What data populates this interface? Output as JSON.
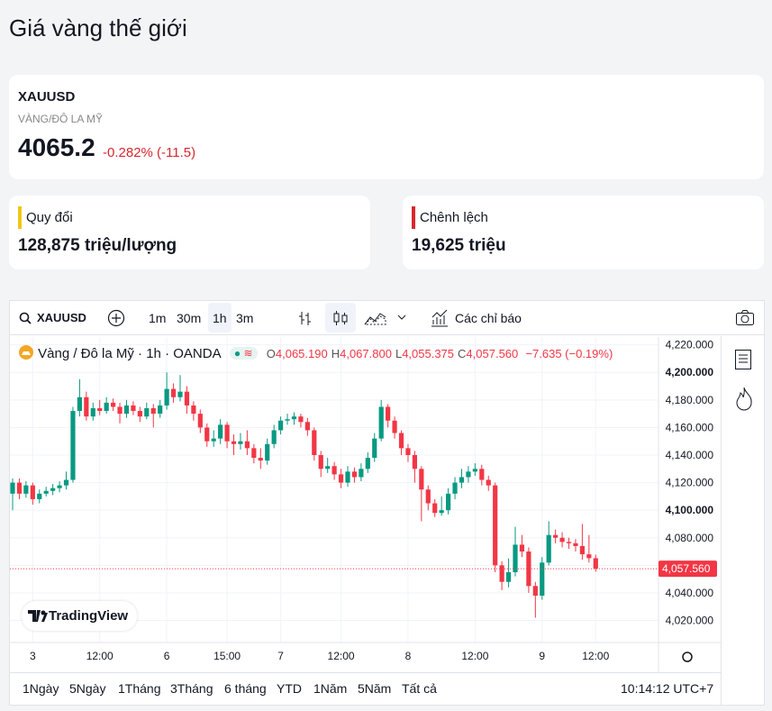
{
  "header": {
    "title": "Giá vàng thế giới"
  },
  "quote": {
    "symbol": "XAUUSD",
    "name": "VÀNG/ĐÔ LA MỸ",
    "price": "4065.2",
    "change": "-0.282% (-11.5)"
  },
  "cards": [
    {
      "label": "Quy đổi",
      "value": "128,875 triệu/lượng"
    },
    {
      "label": "Chênh lệch",
      "value": "19,625 triệu"
    }
  ],
  "widget": {
    "toolbar": {
      "symbol": "XAUUSD",
      "intervals": [
        "1m",
        "30m",
        "1h",
        "3m"
      ],
      "indicators": "Các chỉ báo"
    },
    "legend": [
      {
        "key": "O",
        "value": "4,065.190"
      },
      {
        "key": "H",
        "value": "4,067.800"
      },
      {
        "key": "L",
        "value": "4,055.375"
      },
      {
        "key": "C",
        "value": "4,057.560"
      }
    ],
    "legend_change": "−7.635 (−0.19%)",
    "brand": "TradingView",
    "ranges": [
      "1Ngày",
      "5Ngày",
      "1Tháng",
      "3Tháng",
      "6 tháng",
      "YTD",
      "1Năm",
      "5Năm",
      "Tất cả"
    ],
    "clock": "10:14:12 UTC+7"
  },
  "chart_data": {
    "type": "candlestick",
    "title": "Vàng / Đô la Mỹ · 1h · OANDA",
    "categories": [
      null,
      null,
      null,
      "3",
      null,
      null,
      null,
      null,
      null,
      null,
      null,
      null,
      null,
      "12:00",
      null,
      null,
      null,
      null,
      null,
      null,
      null,
      null,
      null,
      "6",
      null,
      null,
      null,
      null,
      null,
      null,
      null,
      null,
      "15:00",
      null,
      null,
      null,
      null,
      null,
      null,
      null,
      "7",
      null,
      null,
      null,
      null,
      null,
      null,
      null,
      null,
      "12:00",
      null,
      null,
      null,
      null,
      null,
      null,
      null,
      null,
      null,
      "8",
      null,
      null,
      null,
      null,
      null,
      null,
      null,
      null,
      null,
      "12:00",
      null,
      null,
      null,
      null,
      null,
      null,
      null,
      null,
      null,
      "9",
      null,
      null,
      null,
      null,
      null,
      null,
      null,
      "12:00"
    ],
    "series": [
      {
        "up_color": "#089981",
        "down_color": "#f23645",
        "open": [
          4112,
          4120,
          4112,
          4118,
          4108,
          4112,
          4114,
          4116,
          4118,
          4122,
          4172,
          4182,
          4168,
          4174,
          4172,
          4178,
          4175,
          4170,
          4176,
          4172,
          4168,
          4174,
          4170,
          4176,
          4188,
          4182,
          4186,
          4176,
          4170,
          4160,
          4150,
          4152,
          4162,
          4150,
          4148,
          4150,
          4145,
          4138,
          4136,
          4148,
          4158,
          4165,
          4166,
          4168,
          4164,
          4158,
          4140,
          4130,
          4132,
          4126,
          4120,
          4128,
          4124,
          4130,
          4138,
          4152,
          4175,
          4165,
          4156,
          4145,
          4140,
          4130,
          4115,
          4105,
          4098,
          4100,
          4112,
          4120,
          4124,
          4128,
          4130,
          4122,
          4118,
          4060,
          4048,
          4055,
          4075,
          4070,
          4045,
          4038,
          4062,
          4082,
          4080,
          4077,
          4076,
          4074,
          4068,
          4065.19
        ],
        "high": [
          4123,
          4123,
          4121,
          4120,
          4115,
          4117,
          4119,
          4121,
          4128,
          4175,
          4195,
          4186,
          4178,
          4180,
          4182,
          4181,
          4178,
          4180,
          4179,
          4175,
          4178,
          4177,
          4180,
          4200,
          4192,
          4198,
          4190,
          4179,
          4173,
          4163,
          4158,
          4166,
          4164,
          4155,
          4156,
          4158,
          4148,
          4145,
          4152,
          4162,
          4168,
          4170,
          4171,
          4170,
          4167,
          4160,
          4143,
          4138,
          4135,
          4130,
          4132,
          4131,
          4134,
          4142,
          4156,
          4180,
          4177,
          4168,
          4158,
          4148,
          4143,
          4132,
          4118,
          4108,
          4110,
          4116,
          4124,
          4130,
          4132,
          4134,
          4133,
          4125,
          4120,
          4063,
          4065,
          4088,
          4082,
          4073,
          4048,
          4066,
          4092,
          4086,
          4084,
          4080,
          4079,
          4090,
          4082,
          4067.8
        ],
        "low": [
          4100,
          4108,
          4109,
          4104,
          4105,
          4110,
          4111,
          4113,
          4115,
          4120,
          4168,
          4165,
          4165,
          4169,
          4170,
          4172,
          4163,
          4167,
          4169,
          4164,
          4166,
          4160,
          4167,
          4173,
          4178,
          4179,
          4170,
          4165,
          4156,
          4146,
          4146,
          4148,
          4145,
          4140,
          4144,
          4140,
          4134,
          4130,
          4133,
          4145,
          4155,
          4162,
          4162,
          4160,
          4154,
          4136,
          4124,
          4127,
          4122,
          4116,
          4117,
          4120,
          4121,
          4127,
          4135,
          4150,
          4160,
          4152,
          4140,
          4135,
          4120,
          4092,
          4100,
          4095,
          4096,
          4097,
          4108,
          4116,
          4120,
          4125,
          4118,
          4114,
          4055,
          4042,
          4044,
          4052,
          4066,
          4040,
          4022,
          4035,
          4060,
          4076,
          4073,
          4072,
          4070,
          4064,
          4062,
          4055.375
        ],
        "close": [
          4120,
          4112,
          4118,
          4108,
          4112,
          4114,
          4116,
          4118,
          4122,
          4172,
          4182,
          4168,
          4174,
          4172,
          4178,
          4175,
          4170,
          4176,
          4172,
          4168,
          4174,
          4170,
          4176,
          4188,
          4182,
          4186,
          4176,
          4170,
          4160,
          4150,
          4152,
          4162,
          4150,
          4148,
          4150,
          4145,
          4138,
          4136,
          4148,
          4158,
          4165,
          4166,
          4168,
          4164,
          4158,
          4140,
          4130,
          4132,
          4126,
          4120,
          4128,
          4124,
          4130,
          4138,
          4152,
          4175,
          4165,
          4156,
          4145,
          4140,
          4130,
          4115,
          4105,
          4098,
          4100,
          4112,
          4120,
          4124,
          4128,
          4130,
          4122,
          4118,
          4060,
          4048,
          4055,
          4075,
          4070,
          4045,
          4038,
          4062,
          4082,
          4080,
          4077,
          4076,
          4074,
          4068,
          4065.19,
          4057.56
        ],
        "last_value_label": "4,057.560"
      }
    ],
    "ylim": [
      4004,
      4225
    ],
    "yticks": [
      {
        "value": 4220,
        "label": "4,220.000"
      },
      {
        "value": 4200,
        "label": "4,200.000"
      },
      {
        "value": 4180,
        "label": "4,180.000"
      },
      {
        "value": 4160,
        "label": "4,160.000"
      },
      {
        "value": 4140,
        "label": "4,140.000"
      },
      {
        "value": 4120,
        "label": "4,120.000"
      },
      {
        "value": 4100,
        "label": "4,100.000"
      },
      {
        "value": 4080,
        "label": "4,080.000"
      },
      {
        "value": 4060,
        "label": "4,060.000"
      },
      {
        "value": 4040,
        "label": "4,040.000"
      },
      {
        "value": 4020,
        "label": "4,020.000"
      }
    ],
    "grid": true
  }
}
